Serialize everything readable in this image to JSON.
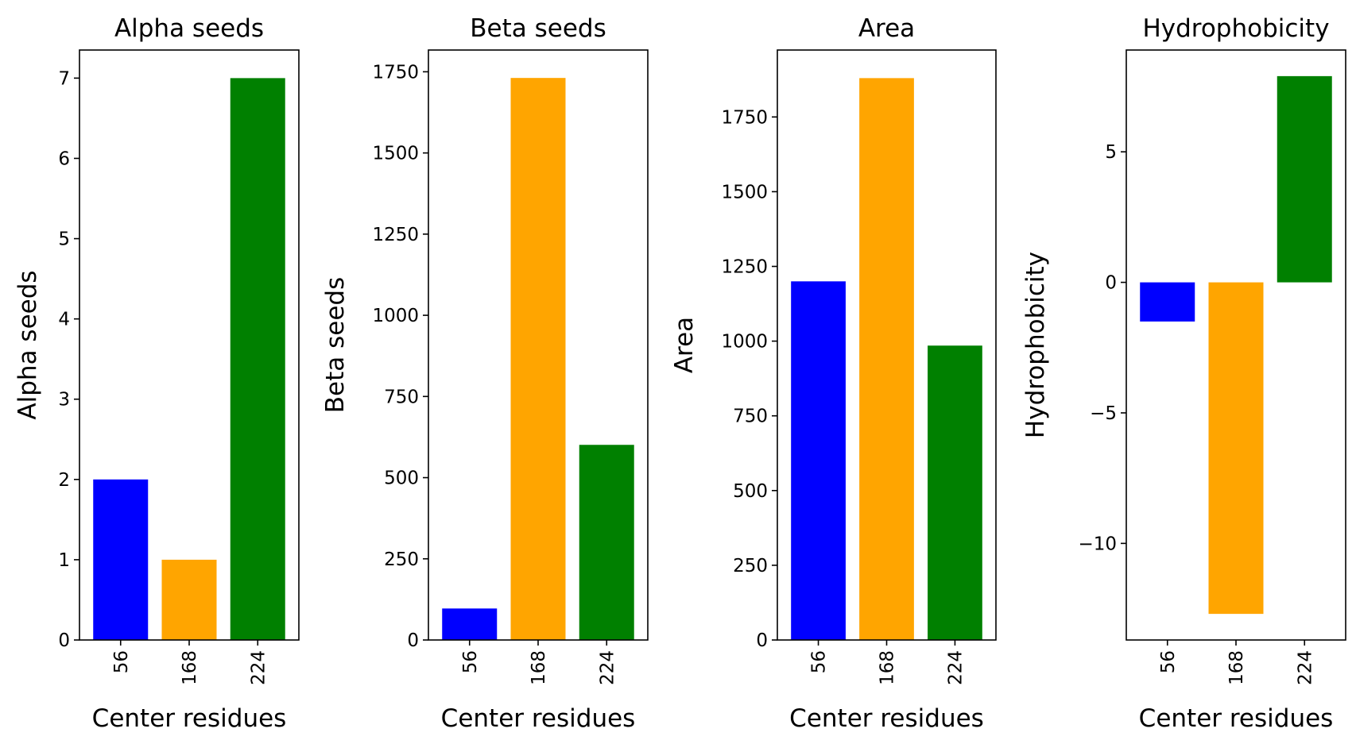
{
  "chart_data": [
    {
      "type": "bar",
      "title": "Alpha seeds",
      "xlabel": "Center residues",
      "ylabel": "Alpha seeds",
      "categories": [
        "56",
        "168",
        "224"
      ],
      "values": [
        2,
        1,
        7
      ],
      "colors": [
        "#0000ff",
        "#ffa500",
        "#008000"
      ],
      "ylim": [
        0,
        7.35
      ],
      "yticks": [
        0,
        1,
        2,
        3,
        4,
        5,
        6,
        7
      ],
      "ytick_labels": [
        "0",
        "1",
        "2",
        "3",
        "4",
        "5",
        "6",
        "7"
      ],
      "grid": false,
      "legend": "none"
    },
    {
      "type": "bar",
      "title": "Beta seeds",
      "xlabel": "Center residues",
      "ylabel": "Beta seeds",
      "categories": [
        "56",
        "168",
        "224"
      ],
      "values": [
        97,
        1731,
        601
      ],
      "colors": [
        "#0000ff",
        "#ffa500",
        "#008000"
      ],
      "ylim": [
        0,
        1817
      ],
      "yticks": [
        0,
        250,
        500,
        750,
        1000,
        1250,
        1500,
        1750
      ],
      "ytick_labels": [
        "0",
        "250",
        "500",
        "750",
        "1000",
        "1250",
        "1500",
        "1750"
      ],
      "grid": false,
      "legend": "none"
    },
    {
      "type": "bar",
      "title": "Area",
      "xlabel": "Center residues",
      "ylabel": "Area",
      "categories": [
        "56",
        "168",
        "224"
      ],
      "values": [
        1200,
        1880,
        985
      ],
      "colors": [
        "#0000ff",
        "#ffa500",
        "#008000"
      ],
      "ylim": [
        0,
        1974
      ],
      "yticks": [
        0,
        250,
        500,
        750,
        1000,
        1250,
        1500,
        1750
      ],
      "ytick_labels": [
        "0",
        "250",
        "500",
        "750",
        "1000",
        "1250",
        "1500",
        "1750"
      ],
      "grid": false,
      "legend": "none"
    },
    {
      "type": "bar",
      "title": "Hydrophobicity",
      "xlabel": "Center residues",
      "ylabel": "Hydrophobicity",
      "categories": [
        "56",
        "168",
        "224"
      ],
      "values": [
        -1.5,
        -12.7,
        7.9
      ],
      "colors": [
        "#0000ff",
        "#ffa500",
        "#008000"
      ],
      "ylim": [
        -13.7,
        8.9
      ],
      "yticks": [
        -10,
        -5,
        0,
        5
      ],
      "ytick_labels": [
        "−10",
        "−5",
        "0",
        "5"
      ],
      "grid": false,
      "legend": "none"
    }
  ]
}
